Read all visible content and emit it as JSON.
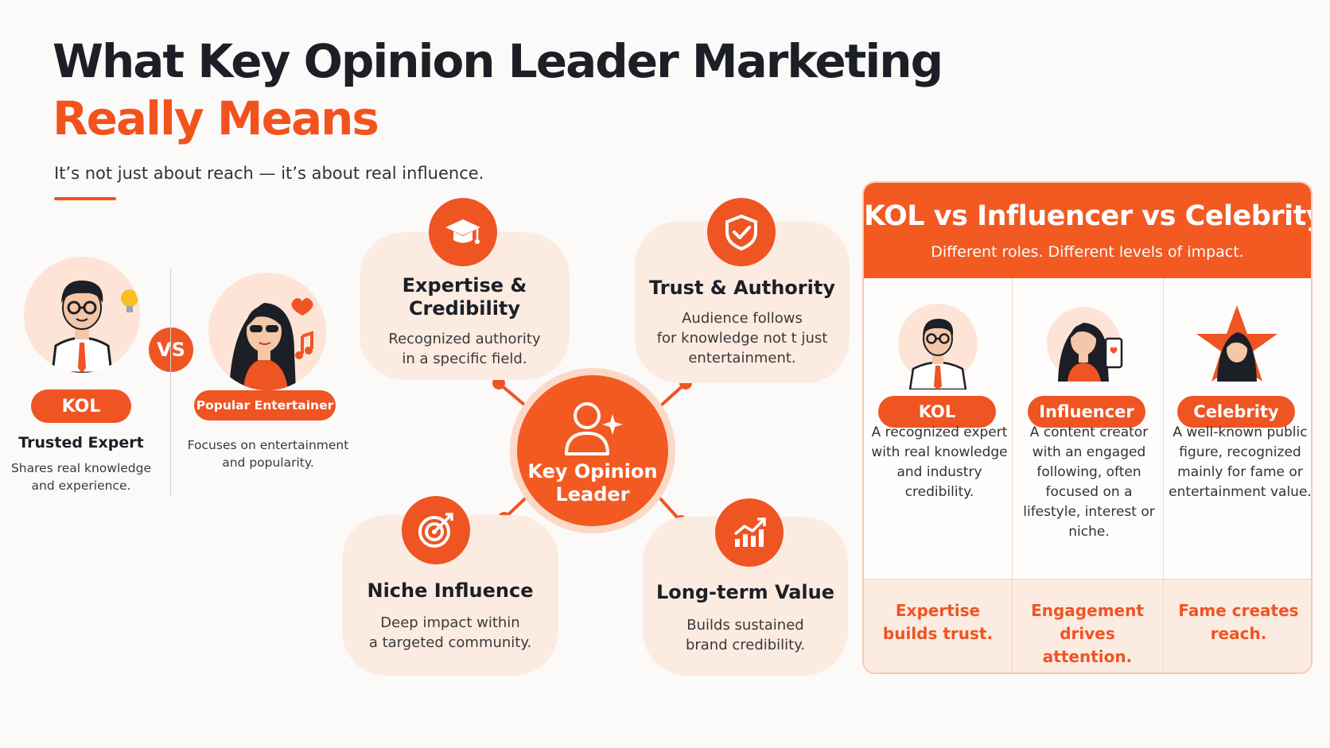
{
  "header": {
    "title_line1": "What Key Opinion Leader Marketing",
    "title_line2": "Really Means",
    "subtitle": "It’s not just about reach — it’s about real influence.",
    "accent_color": "#f2531e"
  },
  "left_compare": {
    "kol": {
      "pill": "KOL",
      "title": "Trusted Expert",
      "text": "Shares real knowledge and experience.",
      "icon": "doctor-avatar-icon"
    },
    "vs": "VS",
    "entertainer": {
      "pill": "Popular Entertainer",
      "text": "Focuses on entertainment and popularity.",
      "icon": "woman-avatar-icon"
    }
  },
  "diagram": {
    "hub_label": "Key Opinion\nLeader",
    "hub_icon": "person-sparkle-icon",
    "cards": [
      {
        "title": "Expertise &\nCredibility",
        "text": "Recognized authority\nin a specific field.",
        "icon": "graduation-cap-icon"
      },
      {
        "title": "Trust & Authority",
        "text": "Audience follows\nfor knowledge not t just\nentertainment.",
        "icon": "shield-check-icon"
      },
      {
        "title": "Niche Influence",
        "text": "Deep impact within\na targeted community.",
        "icon": "target-icon"
      },
      {
        "title": "Long-term Value",
        "text": "Builds sustained\nbrand credibility.",
        "icon": "growth-chart-icon"
      }
    ]
  },
  "comparison": {
    "title": "KOL vs Influencer vs Celebrity",
    "subtitle": "Different roles. Different levels of impact.",
    "columns": [
      {
        "label": "KOL",
        "description": "A recognized expert with real knowledge and industry credibility.",
        "footer": "Expertise\nbuilds trust.",
        "icon": "doctor-avatar-icon"
      },
      {
        "label": "Influencer",
        "description": "A content creator with an engaged following, often focused on a lifestyle, interest or niche.",
        "footer": "Engagement\ndrives attention.",
        "icon": "woman-phone-icon"
      },
      {
        "label": "Celebrity",
        "description": "A well-known public figure, recognized mainly for fame or entertainment value.",
        "footer": "Fame creates\nreach.",
        "icon": "star-woman-icon"
      }
    ]
  }
}
